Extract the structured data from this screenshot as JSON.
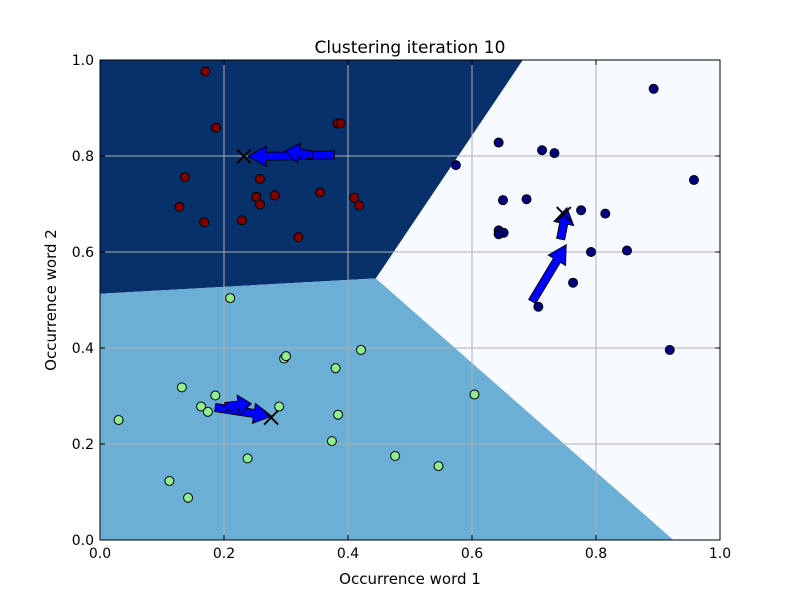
{
  "chart_data": {
    "type": "scatter",
    "title": "Clustering iteration 10",
    "xlabel": "Occurrence word 1",
    "ylabel": "Occurrence word 2",
    "xlim": [
      0.0,
      1.0
    ],
    "ylim": [
      0.0,
      1.0
    ],
    "grid": true,
    "x_ticks": [
      "0.0",
      "0.2",
      "0.4",
      "0.6",
      "0.8",
      "1.0"
    ],
    "y_ticks": [
      "0.0",
      "0.2",
      "0.4",
      "0.6",
      "0.8",
      "1.0"
    ],
    "tick_values": [
      0.0,
      0.2,
      0.4,
      0.6,
      0.8,
      1.0
    ],
    "regions": [
      {
        "color": "#08306b",
        "polygon": [
          [
            0.0,
            1.0
          ],
          [
            0.682,
            1.0
          ],
          [
            0.445,
            0.545
          ],
          [
            0.0,
            0.513
          ]
        ]
      },
      {
        "color": "#6baed6",
        "polygon": [
          [
            0.0,
            0.513
          ],
          [
            0.445,
            0.545
          ],
          [
            0.925,
            0.0
          ],
          [
            0.0,
            0.0
          ]
        ]
      },
      {
        "color": "#f7fbff",
        "polygon": [
          [
            0.682,
            1.0
          ],
          [
            1.0,
            1.0
          ],
          [
            1.0,
            0.0
          ],
          [
            0.925,
            0.0
          ],
          [
            0.445,
            0.545
          ]
        ]
      }
    ],
    "series": [
      {
        "color": "#800000",
        "x": [
          0.17,
          0.187,
          0.383,
          0.388,
          0.137,
          0.258,
          0.128,
          0.252,
          0.282,
          0.355,
          0.41,
          0.258,
          0.418,
          0.168,
          0.229,
          0.32
        ],
        "y": [
          0.976,
          0.859,
          0.868,
          0.868,
          0.756,
          0.752,
          0.694,
          0.715,
          0.718,
          0.724,
          0.713,
          0.699,
          0.697,
          0.662,
          0.666,
          0.631
        ]
      },
      {
        "color": "#000080",
        "x": [
          0.893,
          0.643,
          0.574,
          0.713,
          0.733,
          0.958,
          0.65,
          0.688,
          0.776,
          0.815,
          0.643,
          0.651,
          0.643,
          0.792,
          0.85,
          0.763,
          0.707,
          0.919
        ],
        "y": [
          0.94,
          0.828,
          0.781,
          0.812,
          0.806,
          0.75,
          0.708,
          0.71,
          0.687,
          0.68,
          0.645,
          0.64,
          0.637,
          0.6,
          0.603,
          0.536,
          0.486,
          0.396
        ]
      },
      {
        "color": "#90ee90",
        "x": [
          0.21,
          0.297,
          0.3,
          0.421,
          0.38,
          0.132,
          0.186,
          0.163,
          0.174,
          0.289,
          0.384,
          0.604,
          0.03,
          0.374,
          0.476,
          0.238,
          0.546,
          0.112,
          0.142
        ],
        "y": [
          0.504,
          0.378,
          0.383,
          0.396,
          0.358,
          0.318,
          0.301,
          0.278,
          0.267,
          0.278,
          0.261,
          0.303,
          0.25,
          0.206,
          0.175,
          0.17,
          0.154,
          0.123,
          0.088
        ]
      }
    ],
    "centroids": [
      {
        "x": 0.232,
        "y": 0.799
      },
      {
        "x": 0.748,
        "y": 0.679
      },
      {
        "x": 0.276,
        "y": 0.255
      }
    ],
    "arrows": [
      {
        "from": [
          0.378,
          0.802
        ],
        "to": [
          0.239,
          0.799
        ],
        "color": "#0000ff"
      },
      {
        "from": [
          0.343,
          0.802
        ],
        "to": [
          0.299,
          0.811
        ],
        "color": "#0000ff"
      },
      {
        "from": [
          0.697,
          0.497
        ],
        "to": [
          0.752,
          0.615
        ],
        "color": "#0000ff"
      },
      {
        "from": [
          0.743,
          0.627
        ],
        "to": [
          0.753,
          0.692
        ],
        "color": "#0000ff"
      },
      {
        "from": [
          0.186,
          0.276
        ],
        "to": [
          0.277,
          0.258
        ],
        "color": "#0000ff"
      },
      {
        "from": [
          0.202,
          0.278
        ],
        "to": [
          0.244,
          0.284
        ],
        "color": "#0000ff"
      }
    ]
  }
}
